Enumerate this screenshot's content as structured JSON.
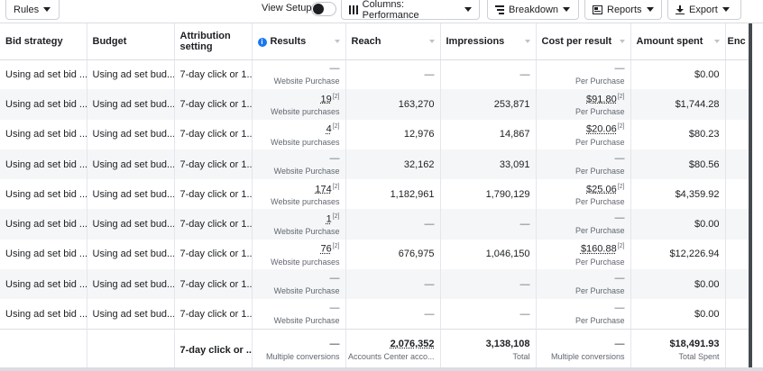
{
  "toolbar": {
    "rules_label": "Rules",
    "view_setup_label": "View Setup",
    "columns_label": "Columns: Performance",
    "breakdown_label": "Breakdown",
    "reports_label": "Reports",
    "export_label": "Export"
  },
  "table": {
    "headers": {
      "bid_strategy": "Bid strategy",
      "budget": "Budget",
      "attribution": "Attribution setting",
      "results": "Results",
      "reach": "Reach",
      "impressions": "Impressions",
      "cost_per_result": "Cost per result",
      "amount_spent": "Amount spent",
      "ends": "Enc"
    },
    "rows": [
      {
        "bid": "Using ad set bid ...",
        "budget": "Using ad set bud...",
        "attr": "7-day click or 1...",
        "results": "—",
        "results_sup": "",
        "results_sub": "Website Purchase",
        "reach": "—",
        "impressions": "—",
        "cpr": "—",
        "cpr_sup": "",
        "cpr_sub": "Per Purchase",
        "spent": "$0.00"
      },
      {
        "bid": "Using ad set bid ...",
        "budget": "Using ad set bud...",
        "attr": "7-day click or 1...",
        "results": "19",
        "results_sup": "[2]",
        "results_sub": "Website purchases",
        "reach": "163,270",
        "impressions": "253,871",
        "cpr": "$91.80",
        "cpr_sup": "[2]",
        "cpr_sub": "Per Purchase",
        "spent": "$1,744.28"
      },
      {
        "bid": "Using ad set bid ...",
        "budget": "Using ad set bud...",
        "attr": "7-day click or 1...",
        "results": "4",
        "results_sup": "[2]",
        "results_sub": "Website purchases",
        "reach": "12,976",
        "impressions": "14,867",
        "cpr": "$20.06",
        "cpr_sup": "[2]",
        "cpr_sub": "Per Purchase",
        "spent": "$80.23"
      },
      {
        "bid": "Using ad set bid ...",
        "budget": "Using ad set bud...",
        "attr": "7-day click or 1...",
        "results": "—",
        "results_sup": "",
        "results_sub": "Website Purchase",
        "reach": "32,162",
        "impressions": "33,091",
        "cpr": "—",
        "cpr_sup": "",
        "cpr_sub": "Per Purchase",
        "spent": "$80.56"
      },
      {
        "bid": "Using ad set bid ...",
        "budget": "Using ad set bud...",
        "attr": "7-day click or 1...",
        "results": "174",
        "results_sup": "[2]",
        "results_sub": "Website purchases",
        "reach": "1,182,961",
        "impressions": "1,790,129",
        "cpr": "$25.06",
        "cpr_sup": "[2]",
        "cpr_sub": "Per Purchase",
        "spent": "$4,359.92"
      },
      {
        "bid": "Using ad set bid ...",
        "budget": "Using ad set bud...",
        "attr": "7-day click or 1...",
        "results": "1",
        "results_sup": "[2]",
        "results_sub": "Website Purchase",
        "reach": "—",
        "impressions": "—",
        "cpr": "—",
        "cpr_sup": "",
        "cpr_sub": "Per Purchase",
        "spent": "$0.00"
      },
      {
        "bid": "Using ad set bid ...",
        "budget": "Using ad set bud...",
        "attr": "7-day click or 1...",
        "results": "76",
        "results_sup": "[2]",
        "results_sub": "Website purchases",
        "reach": "676,975",
        "impressions": "1,046,150",
        "cpr": "$160.88",
        "cpr_sup": "[2]",
        "cpr_sub": "Per Purchase",
        "spent": "$12,226.94"
      },
      {
        "bid": "Using ad set bid ...",
        "budget": "Using ad set bud...",
        "attr": "7-day click or 1...",
        "results": "—",
        "results_sup": "",
        "results_sub": "Website Purchase",
        "reach": "—",
        "impressions": "—",
        "cpr": "—",
        "cpr_sup": "",
        "cpr_sub": "Per Purchase",
        "spent": "$0.00"
      },
      {
        "bid": "Using ad set bid ...",
        "budget": "Using ad set bud...",
        "attr": "7-day click or 1...",
        "results": "—",
        "results_sup": "",
        "results_sub": "Website Purchase",
        "reach": "—",
        "impressions": "—",
        "cpr": "—",
        "cpr_sup": "",
        "cpr_sub": "Per Purchase",
        "spent": "$0.00"
      }
    ],
    "total": {
      "attr": "7-day click or ...",
      "results": "—",
      "results_sub": "Multiple conversions",
      "reach": "2,076,352",
      "reach_sub": "Accounts Center acco...",
      "impressions": "3,138,108",
      "impressions_sub": "Total",
      "cpr": "—",
      "cpr_sub": "Multiple conversions",
      "spent": "$18,491.93",
      "spent_sub": "Total Spent"
    }
  },
  "icons": {
    "columns": "columns-icon",
    "breakdown": "breakdown-icon",
    "reports": "reports-icon",
    "export": "download-icon",
    "info": "info-icon"
  },
  "colors": {
    "accent": "#1877f2",
    "toggle_knob": "#1c1e21",
    "scroll_rail": "#444950"
  }
}
